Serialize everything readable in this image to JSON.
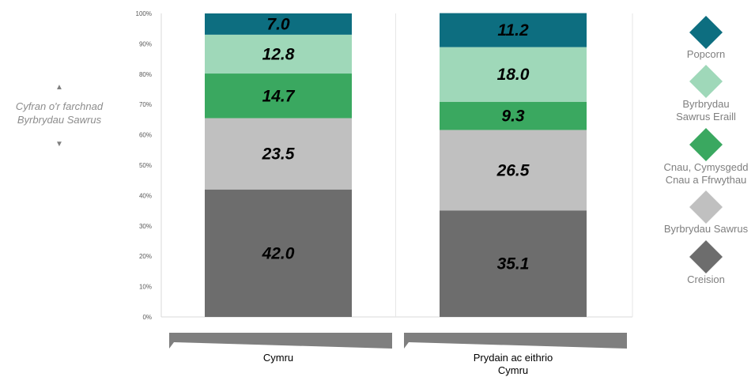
{
  "chart_data": {
    "type": "bar",
    "stacked": true,
    "categories": [
      "Cymru",
      "Prydain ac eithrio\nCymru"
    ],
    "series": [
      {
        "name": "Creision",
        "values": [
          42.0,
          35.1
        ],
        "color": "#6d6d6d"
      },
      {
        "name": "Byrbrydau Sawrus",
        "values": [
          23.5,
          26.5
        ],
        "color": "#c0c0c0"
      },
      {
        "name": "Cnau, Cymysgedd\nCnau a Ffrwythau",
        "values": [
          14.7,
          9.3
        ],
        "color": "#3aa860"
      },
      {
        "name": "Byrbrydau\nSawrus Eraill",
        "values": [
          12.8,
          18.0
        ],
        "color": "#9fd8b9"
      },
      {
        "name": "Popcorn",
        "values": [
          7.0,
          11.2
        ],
        "color": "#0d6e80"
      }
    ],
    "value_labels": [
      [
        "42.0",
        "23.5",
        "14.7",
        "12.8",
        "7.0"
      ],
      [
        "35.1",
        "26.5",
        "9.3",
        "18.0",
        "11.2"
      ]
    ],
    "yticks": [
      "0%",
      "10%",
      "20%",
      "30%",
      "40%",
      "50%",
      "60%",
      "70%",
      "80%",
      "90%",
      "100%"
    ],
    "ylim": [
      0,
      100
    ],
    "ylabel": "Cyfran o'r farchnad\nByrbrydau Sawrus",
    "legend": {
      "position": "right",
      "order_top_to_bottom": [
        "Popcorn",
        "Byrbrydau\nSawrus Eraill",
        "Cnau, Cymysgedd\nCnau a Ffrwythau",
        "Byrbrydau Sawrus",
        "Creision"
      ]
    },
    "grid": false
  }
}
